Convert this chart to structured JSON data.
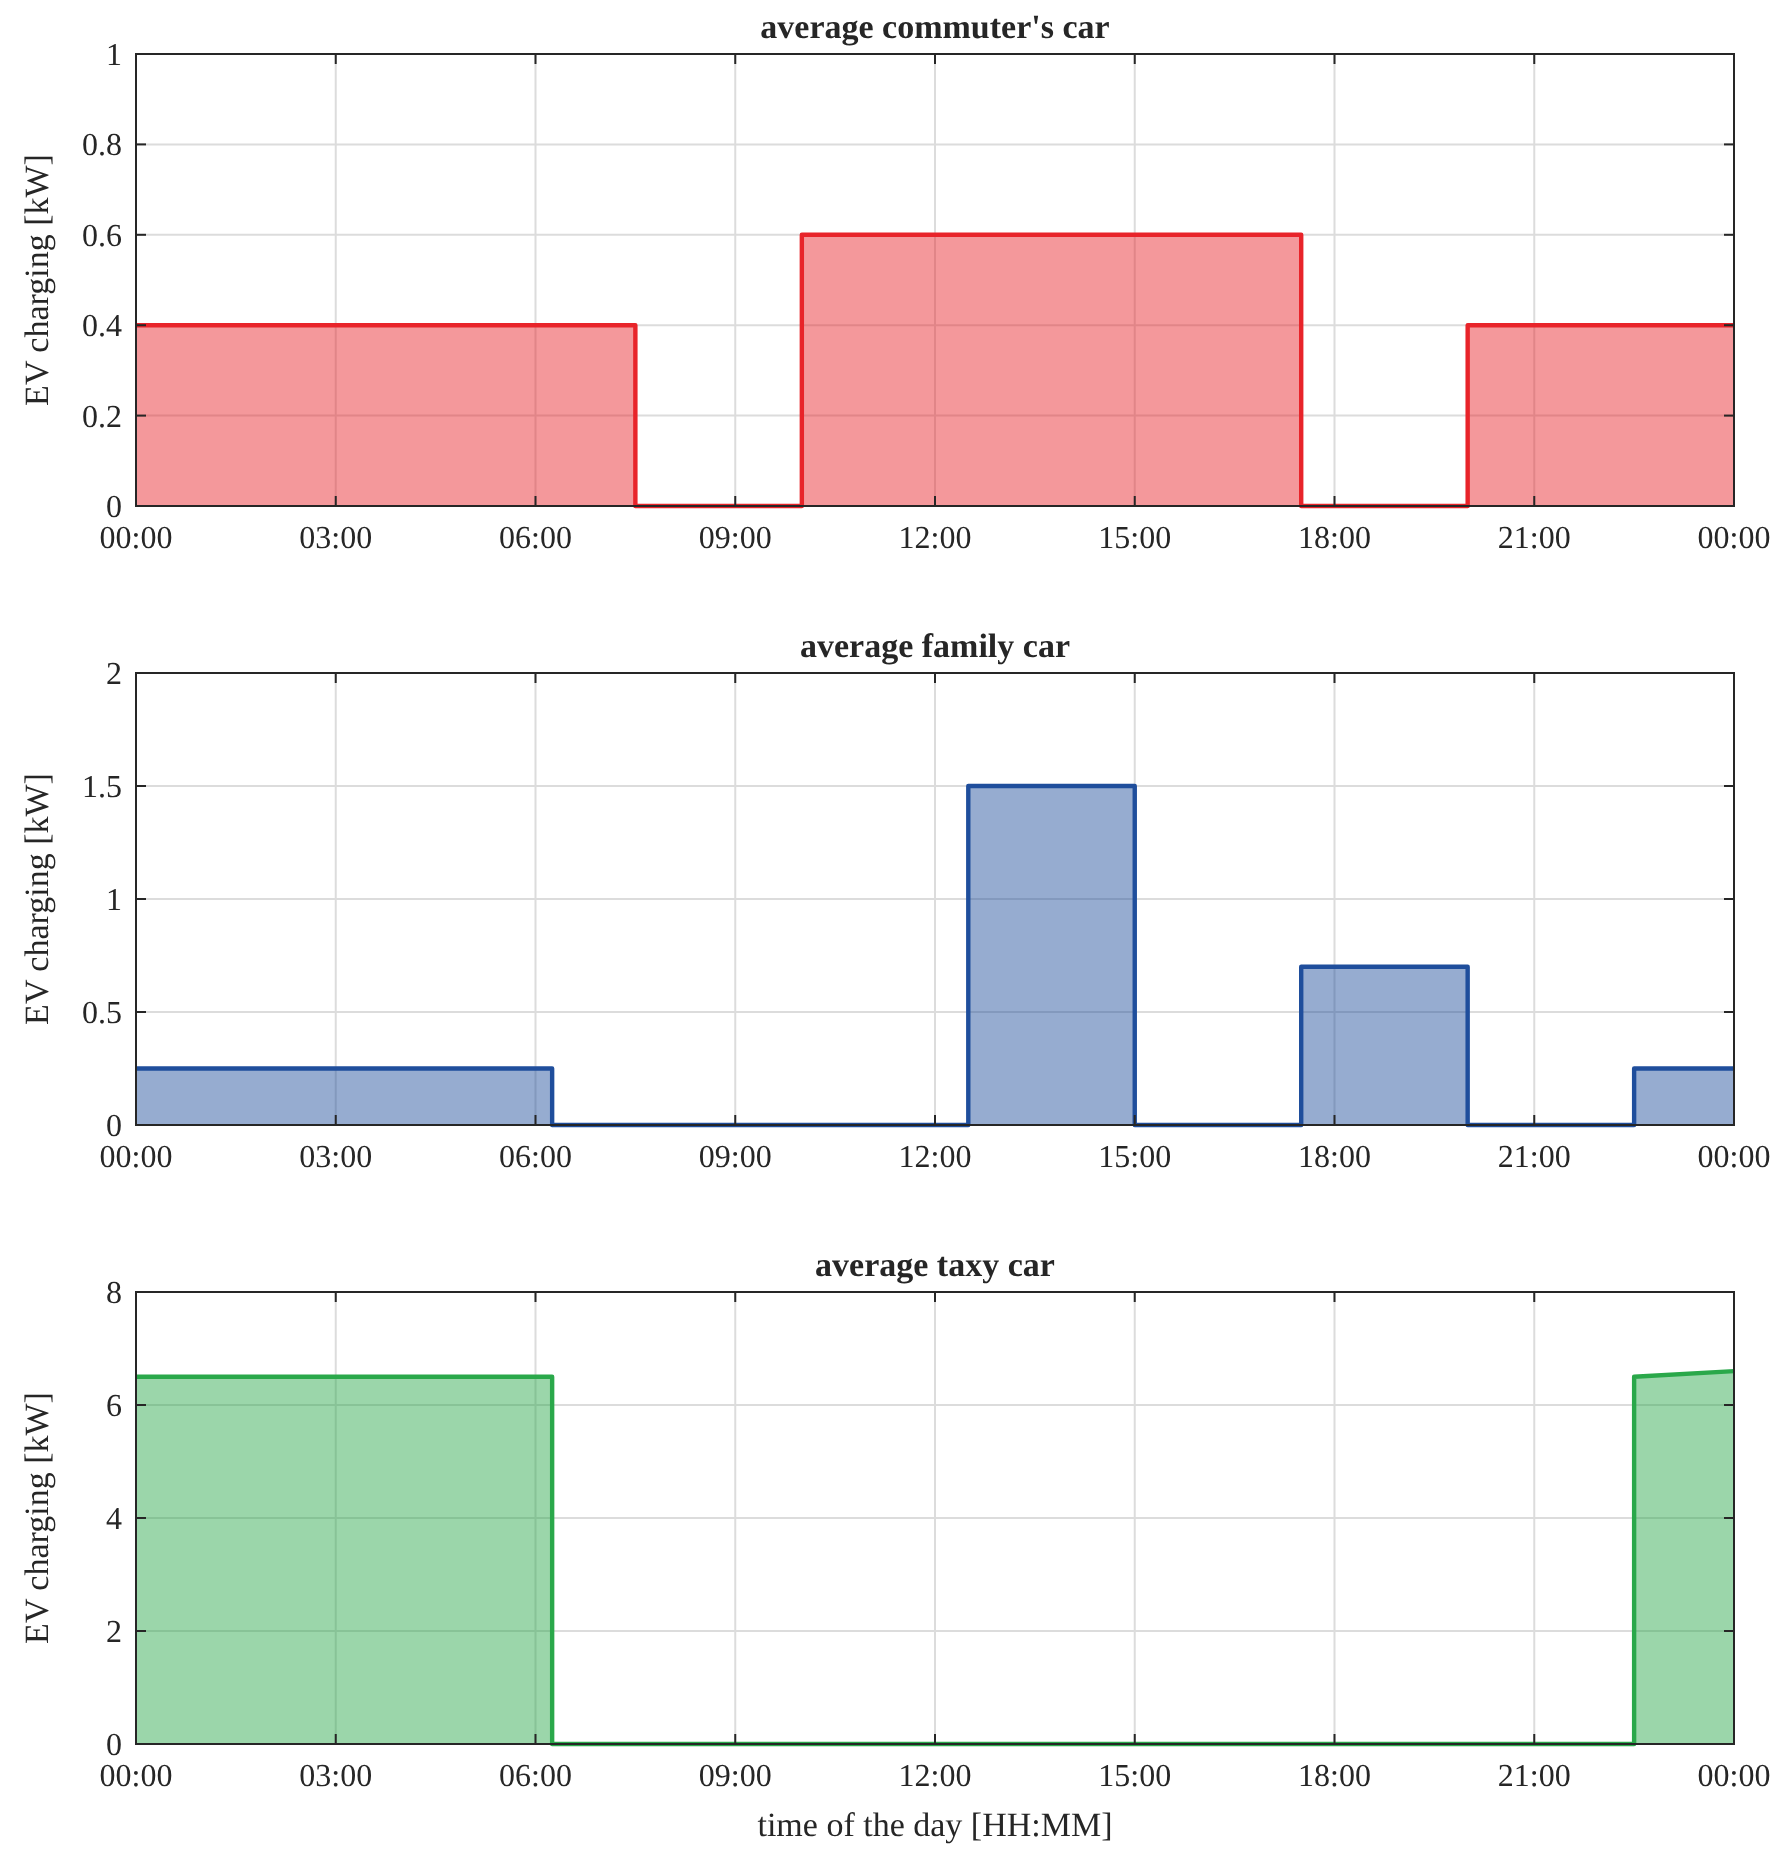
{
  "chart_data": [
    {
      "type": "area",
      "title": "average commuter's car",
      "ylabel": "EV charging [kW]",
      "x": [
        0,
        7.5,
        7.5,
        10,
        10,
        17.5,
        17.5,
        20,
        20,
        24
      ],
      "series": [
        {
          "color": "#e8242a",
          "values": [
            0.4,
            0.4,
            0,
            0,
            0.6,
            0.6,
            0,
            0,
            0.4,
            0.4
          ]
        }
      ],
      "xlim": [
        0,
        24
      ],
      "xticks": [
        {
          "value": 0,
          "label": "00:00"
        },
        {
          "value": 3,
          "label": "03:00"
        },
        {
          "value": 6,
          "label": "06:00"
        },
        {
          "value": 9,
          "label": "09:00"
        },
        {
          "value": 12,
          "label": "12:00"
        },
        {
          "value": 15,
          "label": "15:00"
        },
        {
          "value": 18,
          "label": "18:00"
        },
        {
          "value": 21,
          "label": "21:00"
        },
        {
          "value": 24,
          "label": "00:00"
        }
      ],
      "ylim": [
        0,
        1
      ],
      "yticks": [
        0,
        0.2,
        0.4,
        0.6,
        0.8,
        1
      ],
      "grid": true
    },
    {
      "type": "area",
      "title": "average family car",
      "ylabel": "EV charging [kW]",
      "x": [
        0,
        6.25,
        6.25,
        12.5,
        12.5,
        15,
        15,
        17.5,
        17.5,
        20,
        20,
        22.5,
        22.5,
        24
      ],
      "series": [
        {
          "color": "#1f4e9c",
          "values": [
            0.25,
            0.25,
            0,
            0,
            1.5,
            1.5,
            0,
            0,
            0.7,
            0.7,
            0,
            0,
            0.25,
            0.25
          ]
        }
      ],
      "xlim": [
        0,
        24
      ],
      "xticks": [
        {
          "value": 0,
          "label": "00:00"
        },
        {
          "value": 3,
          "label": "03:00"
        },
        {
          "value": 6,
          "label": "06:00"
        },
        {
          "value": 9,
          "label": "09:00"
        },
        {
          "value": 12,
          "label": "12:00"
        },
        {
          "value": 15,
          "label": "15:00"
        },
        {
          "value": 18,
          "label": "18:00"
        },
        {
          "value": 21,
          "label": "21:00"
        },
        {
          "value": 24,
          "label": "00:00"
        }
      ],
      "ylim": [
        0,
        2
      ],
      "yticks": [
        0,
        0.5,
        1,
        1.5,
        2
      ],
      "grid": true
    },
    {
      "type": "area",
      "title": "average taxy car",
      "xlabel": "time of the day [HH:MM]",
      "ylabel": "EV charging [kW]",
      "x": [
        0,
        6.25,
        6.25,
        22.5,
        22.5,
        24
      ],
      "series": [
        {
          "color": "#2aa84a",
          "values": [
            6.5,
            6.5,
            0,
            0,
            6.5,
            6.6
          ]
        }
      ],
      "xlim": [
        0,
        24
      ],
      "xticks": [
        {
          "value": 0,
          "label": "00:00"
        },
        {
          "value": 3,
          "label": "03:00"
        },
        {
          "value": 6,
          "label": "06:00"
        },
        {
          "value": 9,
          "label": "09:00"
        },
        {
          "value": 12,
          "label": "12:00"
        },
        {
          "value": 15,
          "label": "15:00"
        },
        {
          "value": 18,
          "label": "18:00"
        },
        {
          "value": 21,
          "label": "21:00"
        },
        {
          "value": 24,
          "label": "00:00"
        }
      ],
      "ylim": [
        0,
        8
      ],
      "yticks": [
        0,
        2,
        4,
        6,
        8
      ],
      "grid": true
    }
  ]
}
